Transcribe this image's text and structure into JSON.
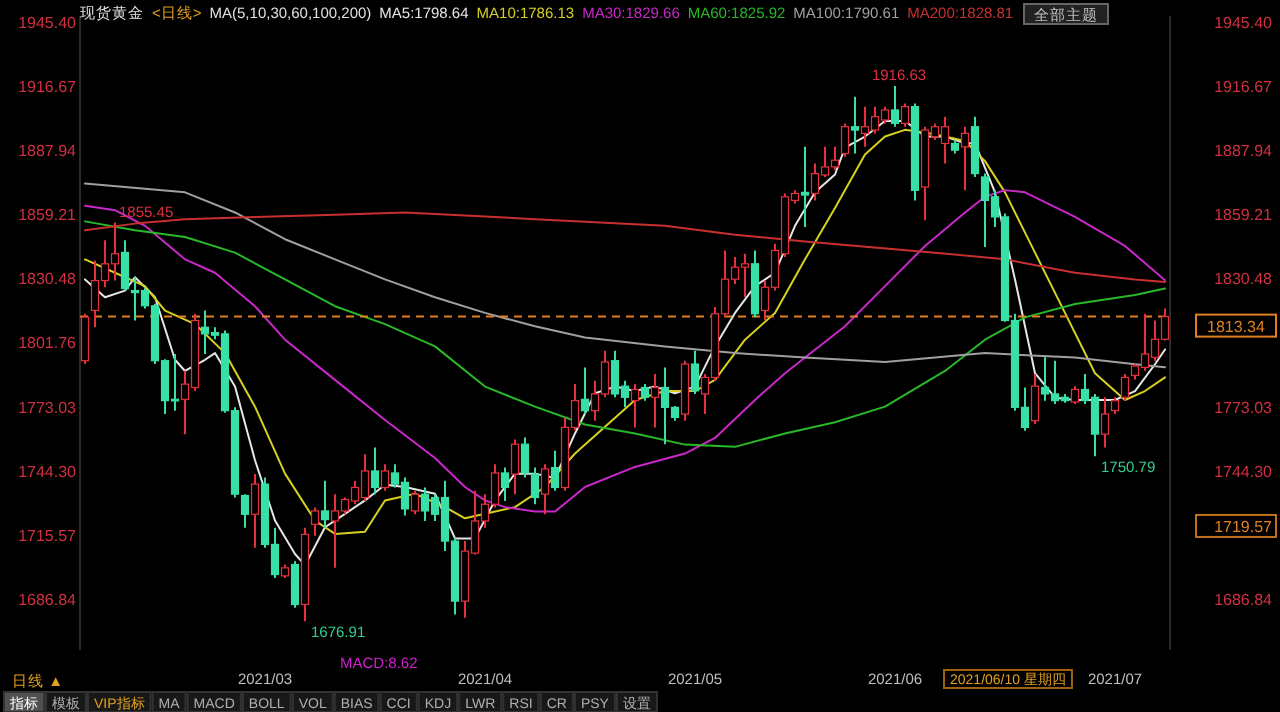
{
  "chart_data": {
    "type": "candlestick",
    "title": "现货黄金",
    "subtitle": "<日线>",
    "legend_title": "MA(5,10,30,60,100,200)",
    "legend": "top",
    "grid": false,
    "categories": [
      null,
      null,
      null,
      null,
      null,
      null,
      null,
      null,
      null,
      null,
      null,
      null,
      null,
      null,
      null,
      null,
      null,
      null,
      "2021/03",
      null,
      null,
      null,
      null,
      null,
      null,
      null,
      null,
      null,
      null,
      null,
      null,
      null,
      null,
      null,
      null,
      null,
      null,
      null,
      null,
      null,
      "2021/04",
      null,
      null,
      null,
      null,
      null,
      null,
      null,
      null,
      null,
      null,
      null,
      null,
      null,
      null,
      null,
      null,
      null,
      null,
      null,
      null,
      "2021/05",
      null,
      null,
      null,
      null,
      null,
      null,
      null,
      null,
      null,
      null,
      null,
      null,
      null,
      null,
      null,
      null,
      null,
      null,
      null,
      "2021/06",
      null,
      null,
      null,
      null,
      null,
      null,
      null,
      null,
      null,
      null,
      null,
      null,
      null,
      null,
      null,
      null,
      null,
      null,
      null,
      null,
      null,
      "2021/07",
      null,
      null,
      null,
      null,
      null
    ],
    "ohlc": [
      [
        1793.6,
        1814.6,
        1792.1,
        1813.1
      ],
      [
        1816.1,
        1838.5,
        1808.6,
        1829.5
      ],
      [
        1829.5,
        1847.5,
        1826.5,
        1837.0
      ],
      [
        1837.0,
        1855.45,
        1829.5,
        1841.5
      ],
      [
        1842.1,
        1847.5,
        1825.0,
        1825.9
      ],
      [
        1825.0,
        1831.0,
        1811.6,
        1824.1
      ],
      [
        1825.0,
        1826.5,
        1817.0,
        1818.2
      ],
      [
        1818.2,
        1819.1,
        1792.1,
        1793.6
      ],
      [
        1793.6,
        1794.2,
        1769.7,
        1775.7
      ],
      [
        1776.3,
        1796.6,
        1771.2,
        1775.7
      ],
      [
        1776.3,
        1789.1,
        1760.7,
        1783.1
      ],
      [
        1781.6,
        1814.6,
        1780.1,
        1811.6
      ],
      [
        1808.6,
        1816.1,
        1796.6,
        1805.6
      ],
      [
        1806.2,
        1808.6,
        1803.2,
        1805.0
      ],
      [
        1805.6,
        1807.1,
        1770.3,
        1771.2
      ],
      [
        1771.2,
        1772.7,
        1732.3,
        1733.8
      ],
      [
        1733.2,
        1733.8,
        1718.8,
        1724.8
      ],
      [
        1724.8,
        1742.8,
        1709.8,
        1738.3
      ],
      [
        1738.3,
        1741.3,
        1709.8,
        1711.3
      ],
      [
        1711.3,
        1718.8,
        1696.3,
        1697.8
      ],
      [
        1697.2,
        1702.3,
        1696.3,
        1700.8
      ],
      [
        1702.3,
        1703.8,
        1682.9,
        1684.4
      ],
      [
        1684.4,
        1718.8,
        1676.91,
        1715.8
      ],
      [
        1720.3,
        1727.8,
        1715.2,
        1726.3
      ],
      [
        1726.3,
        1739.8,
        1718.8,
        1722.4
      ],
      [
        1721.8,
        1733.8,
        1700.8,
        1726.3
      ],
      [
        1726.3,
        1732.3,
        1724.8,
        1731.4
      ],
      [
        1730.8,
        1739.8,
        1729.3,
        1736.8
      ],
      [
        1732.3,
        1751.7,
        1730.8,
        1744.2
      ],
      [
        1744.2,
        1754.7,
        1733.8,
        1736.8
      ],
      [
        1736.8,
        1747.2,
        1735.3,
        1744.2
      ],
      [
        1743.3,
        1747.2,
        1736.8,
        1738.3
      ],
      [
        1739.1,
        1741.3,
        1724.2,
        1727.2
      ],
      [
        1726.3,
        1735.3,
        1724.8,
        1733.8
      ],
      [
        1733.8,
        1736.8,
        1721.8,
        1726.3
      ],
      [
        1732.3,
        1733.8,
        1721.8,
        1724.8
      ],
      [
        1732.3,
        1739.8,
        1708.3,
        1712.8
      ],
      [
        1712.8,
        1714.3,
        1679.9,
        1685.9
      ],
      [
        1685.9,
        1712.8,
        1678.4,
        1708.3
      ],
      [
        1707.4,
        1735.3,
        1706.8,
        1721.8
      ],
      [
        1721.8,
        1733.8,
        1718.8,
        1729.3
      ],
      [
        1729.3,
        1747.2,
        1727.8,
        1743.3
      ],
      [
        1743.3,
        1745.7,
        1730.8,
        1736.8
      ],
      [
        1742.8,
        1758.3,
        1733.8,
        1756.2
      ],
      [
        1756.2,
        1759.2,
        1741.3,
        1743.3
      ],
      [
        1742.8,
        1745.7,
        1729.3,
        1732.3
      ],
      [
        1733.8,
        1747.2,
        1724.8,
        1745.1
      ],
      [
        1745.7,
        1753.2,
        1735.3,
        1736.8
      ],
      [
        1736.8,
        1768.2,
        1735.3,
        1763.7
      ],
      [
        1763.7,
        1783.1,
        1762.2,
        1775.7
      ],
      [
        1776.3,
        1790.6,
        1769.7,
        1771.2
      ],
      [
        1771.2,
        1784.6,
        1766.7,
        1778.7
      ],
      [
        1778.7,
        1798.1,
        1777.2,
        1793.0
      ],
      [
        1793.6,
        1798.1,
        1777.2,
        1778.7
      ],
      [
        1782.2,
        1784.6,
        1772.7,
        1777.2
      ],
      [
        1775.7,
        1783.1,
        1763.7,
        1780.7
      ],
      [
        1781.6,
        1783.1,
        1775.7,
        1777.2
      ],
      [
        1777.2,
        1787.6,
        1763.7,
        1781.6
      ],
      [
        1781.6,
        1790.6,
        1756.2,
        1772.7
      ],
      [
        1772.7,
        1773.3,
        1766.7,
        1768.2
      ],
      [
        1769.7,
        1793.6,
        1766.7,
        1792.1
      ],
      [
        1792.1,
        1798.1,
        1778.7,
        1780.1
      ],
      [
        1778.7,
        1787.6,
        1769.7,
        1786.1
      ],
      [
        1786.1,
        1817.6,
        1784.6,
        1814.6
      ],
      [
        1814.6,
        1843.0,
        1813.1,
        1830.1
      ],
      [
        1830.1,
        1840.0,
        1828.0,
        1835.5
      ],
      [
        1835.5,
        1841.5,
        1822.1,
        1837.0
      ],
      [
        1837.0,
        1843.0,
        1813.1,
        1814.6
      ],
      [
        1816.1,
        1829.5,
        1811.6,
        1826.5
      ],
      [
        1826.5,
        1846.0,
        1825.0,
        1843.0
      ],
      [
        1841.5,
        1868.5,
        1840.0,
        1867.0
      ],
      [
        1865.4,
        1869.9,
        1864.0,
        1868.5
      ],
      [
        1869.0,
        1889.4,
        1853.5,
        1867.8
      ],
      [
        1868.5,
        1881.9,
        1865.4,
        1877.4
      ],
      [
        1876.8,
        1889.4,
        1875.9,
        1880.4
      ],
      [
        1880.4,
        1889.4,
        1878.9,
        1883.4
      ],
      [
        1886.4,
        1899.9,
        1884.9,
        1898.4
      ],
      [
        1898.4,
        1911.8,
        1886.4,
        1896.9
      ],
      [
        1895.4,
        1907.4,
        1889.4,
        1898.4
      ],
      [
        1896.9,
        1907.4,
        1895.4,
        1902.9
      ],
      [
        1901.4,
        1907.4,
        1899.9,
        1905.9
      ],
      [
        1905.9,
        1916.63,
        1898.4,
        1899.9
      ],
      [
        1899.9,
        1908.8,
        1898.4,
        1907.4
      ],
      [
        1907.4,
        1908.8,
        1865.4,
        1869.9
      ],
      [
        1871.4,
        1898.4,
        1856.5,
        1896.9
      ],
      [
        1893.9,
        1899.9,
        1892.4,
        1898.4
      ],
      [
        1890.9,
        1902.9,
        1881.9,
        1898.4
      ],
      [
        1890.9,
        1892.4,
        1886.4,
        1887.9
      ],
      [
        1889.4,
        1898.4,
        1869.9,
        1895.4
      ],
      [
        1898.4,
        1902.9,
        1875.9,
        1877.4
      ],
      [
        1875.9,
        1877.4,
        1844.5,
        1865.4
      ],
      [
        1867.0,
        1869.9,
        1853.5,
        1858.0
      ],
      [
        1858.0,
        1859.5,
        1811.0,
        1811.6
      ],
      [
        1811.6,
        1814.6,
        1771.2,
        1772.7
      ],
      [
        1772.7,
        1781.6,
        1762.2,
        1763.7
      ],
      [
        1766.7,
        1787.6,
        1765.2,
        1782.2
      ],
      [
        1781.6,
        1795.1,
        1775.7,
        1778.7
      ],
      [
        1778.7,
        1793.6,
        1774.2,
        1775.7
      ],
      [
        1777.2,
        1778.7,
        1774.8,
        1775.7
      ],
      [
        1775.1,
        1782.2,
        1774.2,
        1780.7
      ],
      [
        1780.7,
        1787.6,
        1774.2,
        1775.7
      ],
      [
        1777.2,
        1778.7,
        1750.79,
        1760.7
      ],
      [
        1760.7,
        1777.2,
        1754.7,
        1769.7
      ],
      [
        1771.2,
        1777.2,
        1769.7,
        1775.7
      ],
      [
        1777.2,
        1787.6,
        1775.7,
        1786.1
      ],
      [
        1787.0,
        1792.1,
        1785.2,
        1791.2
      ],
      [
        1790.6,
        1814.6,
        1789.1,
        1796.6
      ],
      [
        1795.1,
        1811.6,
        1793.6,
        1803.2
      ],
      [
        1803.2,
        1817.0,
        1802.6,
        1813.34
      ]
    ],
    "colors": [
      "#e8303c",
      "#e8303c",
      "#e8303c",
      "#e8303c",
      "#38e0a8",
      "#38e0a8",
      "#38e0a8",
      "#38e0a8",
      "#38e0a8",
      "#38e0a8",
      "#e8303c",
      "#e8303c",
      "#38e0a8",
      "#38e0a8",
      "#38e0a8",
      "#38e0a8",
      "#38e0a8",
      "#e8303c",
      "#38e0a8",
      "#38e0a8",
      "#e8303c",
      "#38e0a8",
      "#e8303c",
      "#e8303c",
      "#38e0a8",
      "#e8303c",
      "#e8303c",
      "#e8303c",
      "#e8303c",
      "#38e0a8",
      "#e8303c",
      "#38e0a8",
      "#38e0a8",
      "#e8303c",
      "#38e0a8",
      "#38e0a8",
      "#38e0a8",
      "#38e0a8",
      "#e8303c",
      "#e8303c",
      "#e8303c",
      "#e8303c",
      "#38e0a8",
      "#e8303c",
      "#38e0a8",
      "#38e0a8",
      "#e8303c",
      "#38e0a8",
      "#e8303c",
      "#e8303c",
      "#38e0a8",
      "#e8303c",
      "#e8303c",
      "#38e0a8",
      "#38e0a8",
      "#e8303c",
      "#38e0a8",
      "#e8303c",
      "#38e0a8",
      "#38e0a8",
      "#e8303c",
      "#38e0a8",
      "#e8303c",
      "#e8303c",
      "#e8303c",
      "#e8303c",
      "#e8303c",
      "#38e0a8",
      "#e8303c",
      "#e8303c",
      "#e8303c",
      "#e8303c",
      "#38e0a8",
      "#e8303c",
      "#e8303c",
      "#e8303c",
      "#e8303c",
      "#38e0a8",
      "#e8303c",
      "#e8303c",
      "#e8303c",
      "#38e0a8",
      "#e8303c",
      "#38e0a8",
      "#e8303c",
      "#e8303c",
      "#e8303c",
      "#38e0a8",
      "#e8303c",
      "#38e0a8",
      "#38e0a8",
      "#38e0a8",
      "#38e0a8",
      "#38e0a8",
      "#38e0a8",
      "#e8303c",
      "#38e0a8",
      "#38e0a8",
      "#38e0a8",
      "#e8303c",
      "#38e0a8",
      "#38e0a8",
      "#e8303c",
      "#e8303c",
      "#e8303c",
      "#e8303c",
      "#e8303c",
      "#e8303c",
      "#e8303c"
    ],
    "series": [
      {
        "name": "MA5:1798.64",
        "type": "line",
        "color": "#e6e6e6",
        "values": [
          1830,
          null,
          1822,
          null,
          1825,
          1831,
          null,
          1822,
          null,
          1794,
          1789,
          null,
          1794,
          1797,
          null,
          1782,
          null,
          1749,
          null,
          1722,
          null,
          1707,
          1702,
          null,
          1719,
          null,
          1725,
          null,
          1731,
          null,
          1738,
          null,
          1737,
          null,
          null,
          1734,
          null,
          1714,
          null,
          1714,
          null,
          1731,
          null,
          1743,
          null,
          1743,
          null,
          1741,
          null,
          1761,
          null,
          1779,
          null,
          1782,
          null,
          1780,
          null,
          1782,
          null,
          1779,
          null,
          1782,
          null,
          1800,
          null,
          1815,
          null,
          1827,
          null,
          1833,
          null,
          1854,
          null,
          1869,
          null,
          1877,
          1889,
          null,
          1894,
          null,
          1901,
          null,
          1901,
          null,
          1894,
          null,
          1894,
          null,
          1891,
          1891,
          null,
          1869,
          null,
          1830,
          null,
          1788,
          null,
          1777,
          null,
          1776,
          null,
          1776,
          null,
          1776,
          null,
          1780,
          null,
          1792,
          1798.64
        ]
      },
      {
        "name": "MA10:1786.13",
        "type": "line",
        "color": "#d8d020",
        "values": [
          1839,
          null,
          null,
          1833,
          null,
          null,
          1827,
          null,
          1816,
          null,
          null,
          1810,
          null,
          null,
          1797,
          null,
          null,
          1773,
          null,
          null,
          1743,
          null,
          null,
          1722,
          null,
          1716,
          null,
          null,
          1717,
          null,
          1731,
          null,
          null,
          1734,
          null,
          null,
          1728,
          null,
          1723,
          null,
          1725,
          null,
          null,
          1728,
          null,
          null,
          1737,
          null,
          null,
          1752,
          null,
          null,
          1764,
          null,
          null,
          1776,
          null,
          null,
          1780,
          null,
          null,
          1780,
          null,
          1785,
          null,
          null,
          1803,
          null,
          null,
          1815,
          null,
          null,
          1839,
          null,
          null,
          1862,
          null,
          null,
          1886,
          null,
          1894,
          null,
          1897,
          null,
          null,
          1895,
          null,
          null,
          1892,
          null,
          1883,
          null,
          1869,
          null,
          null,
          1842,
          null,
          null,
          1815,
          null,
          null,
          1788,
          null,
          null,
          1776,
          null,
          1780,
          null,
          1786.13
        ]
      },
      {
        "name": "MA30:1829.66",
        "type": "line",
        "color": "#c828c8",
        "values": [
          1863,
          null,
          null,
          1861,
          null,
          null,
          1854,
          null,
          null,
          null,
          1839,
          null,
          null,
          1833,
          null,
          null,
          null,
          1818,
          null,
          null,
          1803,
          null,
          null,
          null,
          null,
          1785,
          null,
          null,
          null,
          null,
          1767,
          null,
          null,
          null,
          null,
          1750,
          null,
          null,
          1737,
          null,
          1731,
          null,
          1728,
          null,
          null,
          1726,
          null,
          1726,
          null,
          null,
          1737,
          null,
          null,
          null,
          null,
          1746,
          null,
          null,
          null,
          null,
          1752,
          null,
          null,
          1759,
          null,
          null,
          null,
          1776,
          null,
          null,
          1788,
          null,
          1795,
          null,
          null,
          null,
          1809,
          null,
          null,
          null,
          1827,
          null,
          null,
          null,
          1845,
          null,
          null,
          null,
          1860,
          null,
          1867,
          null,
          1870,
          null,
          1869,
          null,
          null,
          null,
          null,
          1858,
          null,
          null,
          null,
          null,
          1845,
          null,
          null,
          null,
          1829.66
        ]
      },
      {
        "name": "MA60:1825.92",
        "type": "line",
        "color": "#28b828",
        "values": [
          1856,
          null,
          null,
          null,
          null,
          1852,
          null,
          null,
          null,
          null,
          1849,
          null,
          null,
          null,
          null,
          1842,
          null,
          null,
          null,
          null,
          1830,
          null,
          null,
          null,
          null,
          1818,
          null,
          null,
          null,
          null,
          1810,
          null,
          null,
          null,
          null,
          1800,
          null,
          null,
          null,
          null,
          1782,
          null,
          null,
          null,
          null,
          1773,
          null,
          null,
          null,
          null,
          1765,
          null,
          null,
          null,
          null,
          1761,
          null,
          null,
          null,
          null,
          1756,
          null,
          null,
          null,
          null,
          1755,
          null,
          null,
          null,
          null,
          1761,
          null,
          null,
          null,
          null,
          1766,
          null,
          null,
          null,
          null,
          1773,
          null,
          null,
          null,
          null,
          null,
          1789,
          null,
          null,
          null,
          1803,
          null,
          null,
          null,
          1813,
          null,
          null,
          null,
          null,
          1819,
          null,
          null,
          null,
          null,
          null,
          1823,
          null,
          null,
          1825.92
        ]
      },
      {
        "name": "MA100:1790.61",
        "type": "line",
        "color": "#a0a0a0",
        "values": [
          1873,
          null,
          null,
          null,
          null,
          null,
          null,
          null,
          null,
          null,
          1869,
          null,
          null,
          null,
          null,
          1860,
          null,
          null,
          null,
          null,
          1848,
          null,
          null,
          null,
          null,
          1839,
          null,
          null,
          null,
          null,
          1830,
          null,
          null,
          null,
          null,
          1822,
          null,
          null,
          null,
          null,
          1815,
          null,
          null,
          null,
          null,
          1809,
          null,
          null,
          null,
          null,
          1804,
          null,
          null,
          null,
          null,
          null,
          null,
          null,
          1800,
          null,
          null,
          null,
          null,
          null,
          null,
          1797,
          null,
          null,
          null,
          null,
          null,
          null,
          1795,
          null,
          null,
          null,
          null,
          null,
          null,
          null,
          1793,
          null,
          null,
          null,
          null,
          null,
          null,
          null,
          null,
          null,
          1797,
          null,
          null,
          null,
          null,
          null,
          null,
          null,
          null,
          1795,
          null,
          null,
          null,
          null,
          null,
          1792,
          null,
          null,
          1790.61
        ]
      },
      {
        "name": "MA200:1828.81",
        "type": "line",
        "color": "#c83030",
        "values": [
          1852,
          null,
          null,
          null,
          null,
          1855,
          null,
          null,
          null,
          null,
          1857,
          null,
          null,
          null,
          null,
          null,
          null,
          1858,
          null,
          null,
          null,
          null,
          null,
          null,
          null,
          1859,
          null,
          null,
          null,
          null,
          null,
          null,
          1860,
          null,
          null,
          null,
          null,
          null,
          null,
          null,
          null,
          null,
          null,
          null,
          null,
          1857,
          null,
          null,
          null,
          null,
          null,
          null,
          null,
          null,
          null,
          null,
          null,
          null,
          1854,
          null,
          null,
          null,
          null,
          null,
          null,
          1850,
          null,
          null,
          null,
          null,
          null,
          null,
          1847,
          null,
          null,
          null,
          null,
          null,
          null,
          null,
          null,
          null,
          null,
          null,
          null,
          1842,
          null,
          null,
          null,
          null,
          null,
          null,
          1839,
          null,
          null,
          null,
          null,
          null,
          null,
          1833,
          null,
          null,
          null,
          null,
          null,
          1830,
          null,
          null,
          1828.81
        ]
      }
    ],
    "ylim": [
      1664,
      1948
    ],
    "yticks": [
      {
        "value": 1945.4,
        "label": "1945.40"
      },
      {
        "value": 1916.67,
        "label": "1916.67"
      },
      {
        "value": 1887.94,
        "label": "1887.94"
      },
      {
        "value": 1859.21,
        "label": "1859.21"
      },
      {
        "value": 1830.48,
        "label": "1830.48"
      },
      {
        "value": 1801.76,
        "label": "1801.76"
      },
      {
        "value": 1773.03,
        "label": "1773.03"
      },
      {
        "value": 1744.3,
        "label": "1744.30"
      },
      {
        "value": 1715.57,
        "label": "1715.57"
      },
      {
        "value": 1686.84,
        "label": "1686.84"
      }
    ],
    "y2lim": [
      1664,
      1948
    ],
    "y2ticks": [
      {
        "value": 1945.4,
        "label": "1945.40"
      },
      {
        "value": 1916.67,
        "label": "1916.67"
      },
      {
        "value": 1887.94,
        "label": "1887.94"
      },
      {
        "value": 1859.21,
        "label": "1859.21"
      },
      {
        "value": 1830.48,
        "label": "1830.48"
      },
      {
        "value": 1773.03,
        "label": "1773.03"
      },
      {
        "value": 1744.3,
        "label": "1744.30"
      },
      {
        "value": 1719.57,
        "label": "1719.57"
      },
      {
        "value": 1686.84,
        "label": "1686.84"
      }
    ],
    "ref_lines": [
      {
        "axis": "y2",
        "value": 1813.34,
        "label": "1813.34",
        "color": "#e08020",
        "line_style": "dashed"
      }
    ],
    "annotations": [
      "1855.45",
      "1916.63",
      "1676.91",
      "1750.79",
      "2021/06/10 星期四",
      "MACD:8.62",
      "日线 ▲",
      "全部主题",
      "指标",
      "模板",
      "VIP指标",
      "MA",
      "MACD",
      "BOLL",
      "VOL",
      "BIAS",
      "CCI",
      "KDJ",
      "LWR",
      "RSI",
      "CR",
      "PSY",
      "设置"
    ]
  }
}
